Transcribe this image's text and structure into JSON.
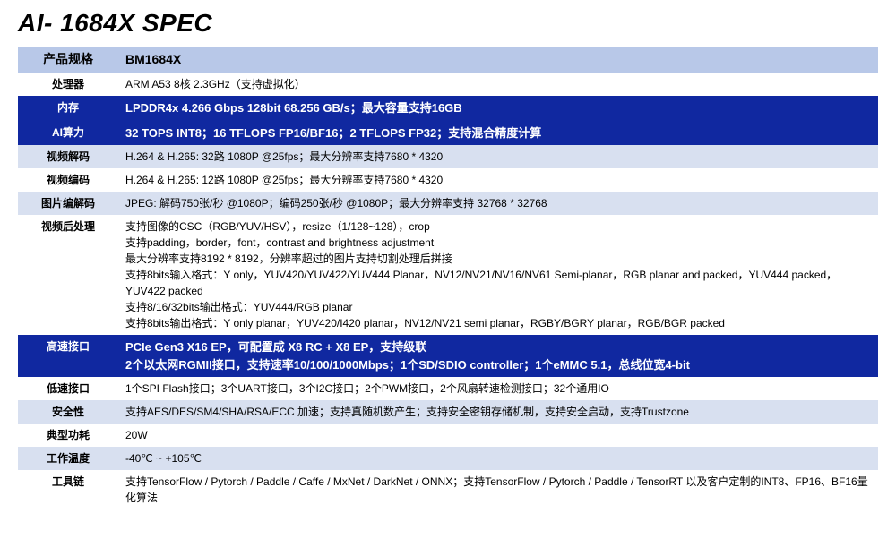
{
  "title": "AI- 1684X SPEC",
  "colors": {
    "header_bg": "#b8c8e8",
    "dark_bg": "#1028a0",
    "light_bg": "#d8e0f0",
    "white_bg": "#ffffff",
    "dark_text": "#ffffff",
    "normal_text": "#000000"
  },
  "rows": [
    {
      "type": "header",
      "label": "产品规格",
      "value": "BM1684X"
    },
    {
      "type": "white",
      "label": "处理器",
      "value": "ARM A53 8核 2.3GHz（支持虚拟化）"
    },
    {
      "type": "dark",
      "label": "内存",
      "value": "LPDDR4x 4.266 Gbps 128bit 68.256 GB/s；最大容量支持16GB"
    },
    {
      "type": "dark",
      "label": "AI算力",
      "value": "32 TOPS INT8；16 TFLOPS FP16/BF16；2 TFLOPS FP32；支持混合精度计算"
    },
    {
      "type": "light",
      "label": "视频解码",
      "value": "H.264 & H.265: 32路  1080P @25fps；最大分辨率支持7680 * 4320"
    },
    {
      "type": "white",
      "label": "视频编码",
      "value": "H.264 & H.265: 12路 1080P @25fps；最大分辨率支持7680 * 4320"
    },
    {
      "type": "light",
      "label": "图片编解码",
      "value": "JPEG: 解码750张/秒 @1080P；编码250张/秒 @1080P；最大分辨率支持 32768 * 32768"
    },
    {
      "type": "white",
      "label": "视频后处理",
      "value": "支持图像的CSC（RGB/YUV/HSV），resize（1/128~128），crop\n支持padding，border，font，contrast and brightness adjustment\n最大分辨率支持8192 * 8192，分辨率超过的图片支持切割处理后拼接\n支持8bits输入格式：Y only，YUV420/YUV422/YUV444 Planar，NV12/NV21/NV16/NV61 Semi-planar，RGB planar and packed，YUV444 packed，YUV422 packed\n支持8/16/32bits输出格式：YUV444/RGB planar\n支持8bits输出格式：Y only planar，YUV420/I420 planar，NV12/NV21 semi planar，RGBY/BGRY planar，RGB/BGR packed"
    },
    {
      "type": "dark",
      "label": "高速接口",
      "value": "PCIe Gen3 X16 EP，可配置成 X8 RC + X8 EP，支持级联\n2个以太网RGMII接口，支持速率10/100/1000Mbps；1个SD/SDIO controller；1个eMMC 5.1，总线位宽4-bit"
    },
    {
      "type": "white",
      "label": "低速接口",
      "value": "1个SPI Flash接口；3个UART接口，3个I2C接口；2个PWM接口，2个风扇转速检测接口；32个通用IO"
    },
    {
      "type": "light",
      "label": "安全性",
      "value": "支持AES/DES/SM4/SHA/RSA/ECC 加速；支持真随机数产生；支持安全密钥存储机制，支持安全启动，支持Trustzone"
    },
    {
      "type": "white",
      "label": "典型功耗",
      "value": "20W"
    },
    {
      "type": "light",
      "label": "工作温度",
      "value": "-40℃ ~ +105℃"
    },
    {
      "type": "white",
      "label": "工具链",
      "value": "支持TensorFlow / Pytorch / Paddle / Caffe / MxNet / DarkNet / ONNX；支持TensorFlow / Pytorch / Paddle / TensorRT 以及客户定制的INT8、FP16、BF16量化算法"
    }
  ]
}
